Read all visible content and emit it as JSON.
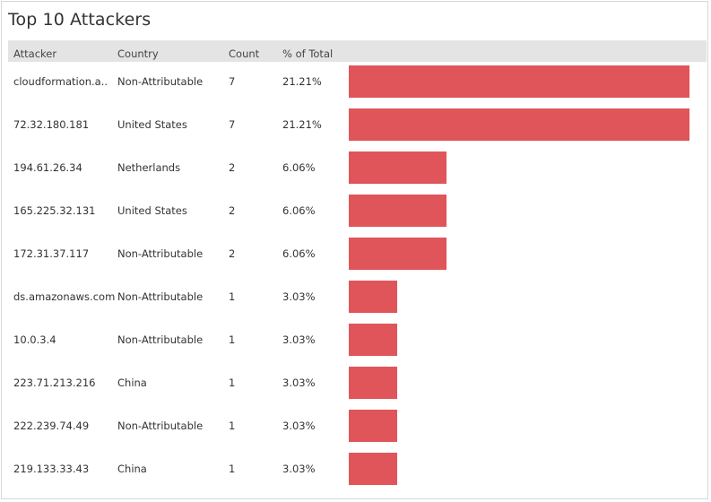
{
  "title": "Top 10 Attackers",
  "columns": {
    "attacker": "Attacker",
    "country": "Country",
    "count": "Count",
    "pct": "% of Total"
  },
  "colors": {
    "bar": "#e0555a",
    "header_bg": "#e4e4e4"
  },
  "chart_data": {
    "type": "bar",
    "orientation": "horizontal",
    "title": "Top 10 Attackers",
    "xlim": [
      0,
      7
    ],
    "rows": [
      {
        "attacker": "cloudformation.a..",
        "country": "Non-Attributable",
        "count": 7,
        "pct": "21.21%"
      },
      {
        "attacker": "72.32.180.181",
        "country": "United States",
        "count": 7,
        "pct": "21.21%"
      },
      {
        "attacker": "194.61.26.34",
        "country": "Netherlands",
        "count": 2,
        "pct": "6.06%"
      },
      {
        "attacker": "165.225.32.131",
        "country": "United States",
        "count": 2,
        "pct": "6.06%"
      },
      {
        "attacker": "172.31.37.117",
        "country": "Non-Attributable",
        "count": 2,
        "pct": "6.06%"
      },
      {
        "attacker": "ds.amazonaws.com",
        "country": "Non-Attributable",
        "count": 1,
        "pct": "3.03%"
      },
      {
        "attacker": "10.0.3.4",
        "country": "Non-Attributable",
        "count": 1,
        "pct": "3.03%"
      },
      {
        "attacker": "223.71.213.216",
        "country": "China",
        "count": 1,
        "pct": "3.03%"
      },
      {
        "attacker": "222.239.74.49",
        "country": "Non-Attributable",
        "count": 1,
        "pct": "3.03%"
      },
      {
        "attacker": "219.133.33.43",
        "country": "China",
        "count": 1,
        "pct": "3.03%"
      }
    ]
  }
}
